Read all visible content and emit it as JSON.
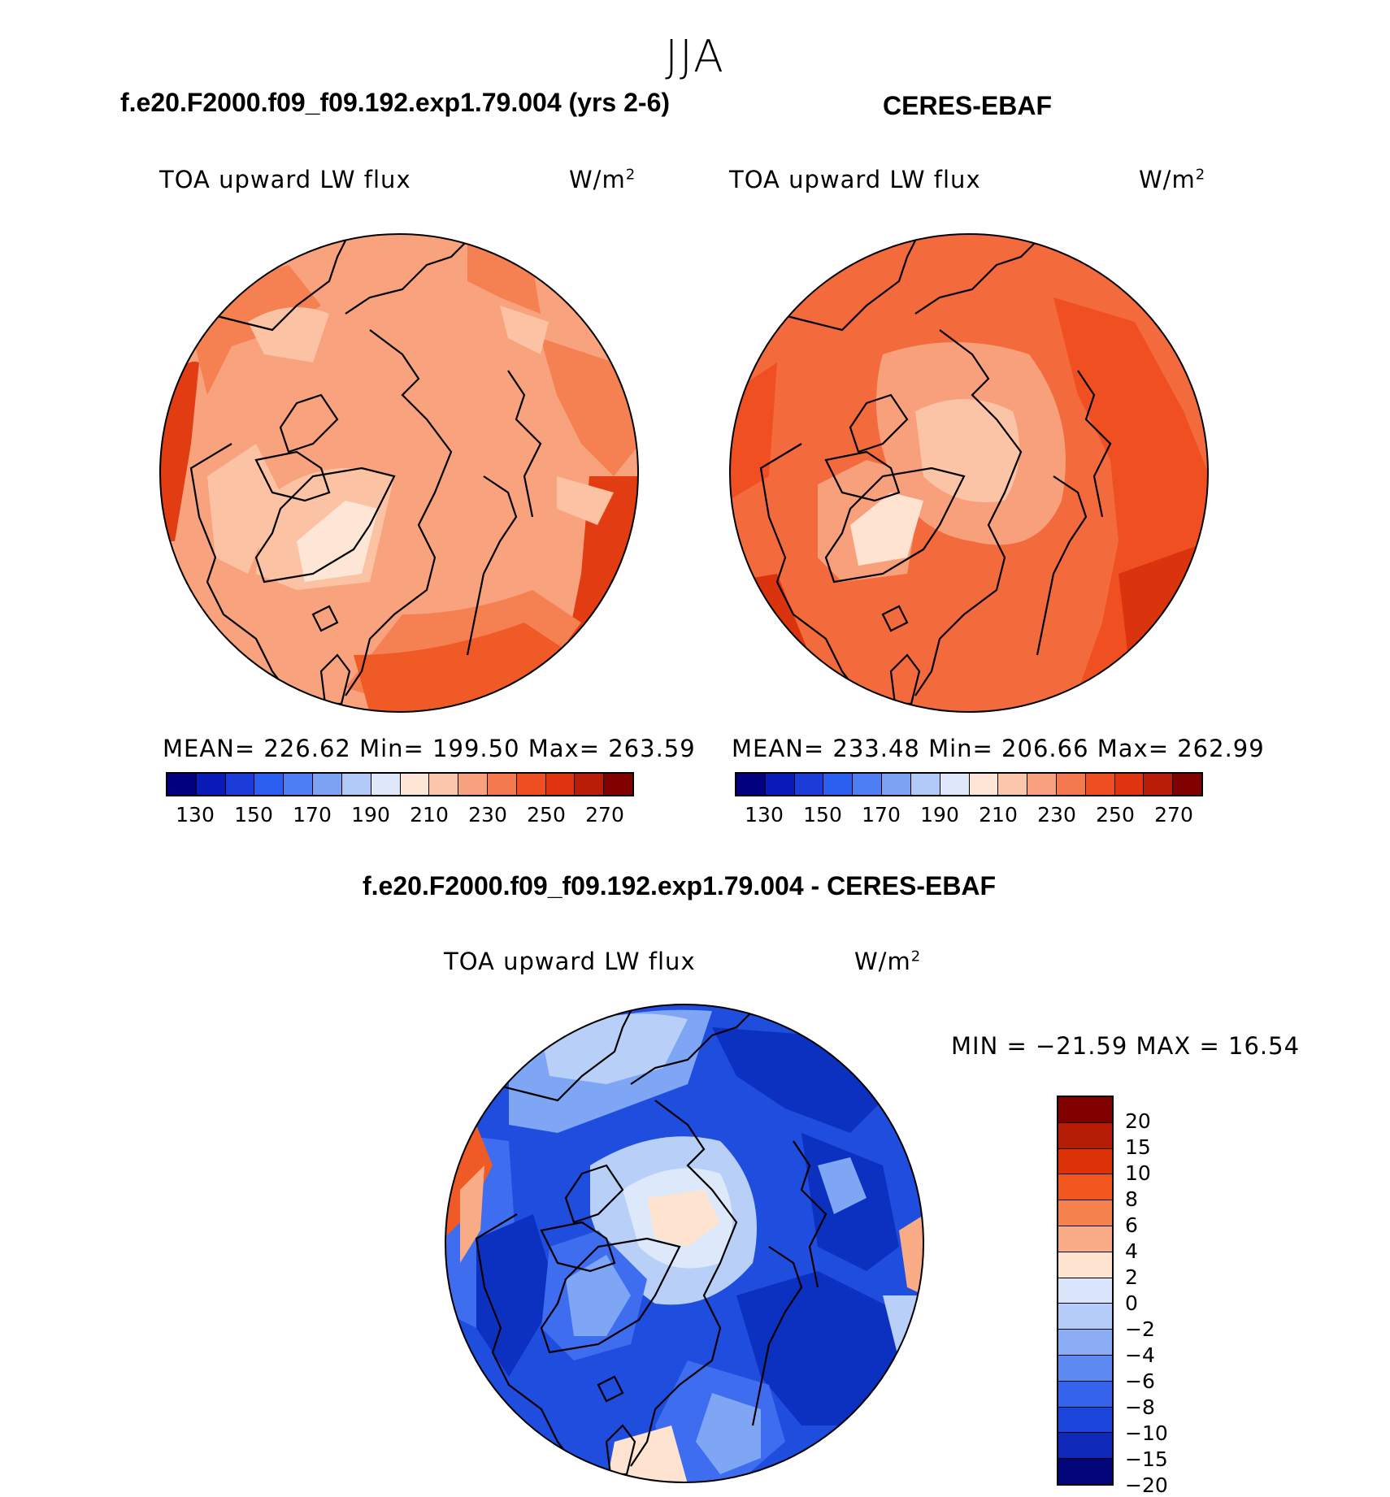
{
  "season": "JJA",
  "panels": [
    {
      "case": "f.e20.F2000.f09_f09.192.exp1.79.004 (yrs 2-6)",
      "variable": "TOA upward LW flux",
      "units": "W/m",
      "units_sup": "2",
      "stats": "MEAN= 226.62   Min= 199.50   Max= 263.59"
    },
    {
      "case": "CERES-EBAF",
      "variable": "TOA upward LW flux",
      "units": "W/m",
      "units_sup": "2",
      "stats": "MEAN= 233.48   Min= 206.66   Max= 262.99"
    },
    {
      "case": "f.e20.F2000.f09_f09.192.exp1.79.004 - CERES-EBAF",
      "variable": "TOA upward LW flux",
      "units": "W/m",
      "units_sup": "2",
      "stats": "MIN =  −21.59 MAX =   16.54"
    }
  ],
  "colorbar_main": {
    "ticks": [
      "130",
      "150",
      "170",
      "190",
      "210",
      "230",
      "250",
      "270"
    ],
    "colors": [
      "#02007e",
      "#0a1ab8",
      "#1b3cd9",
      "#2b5ff0",
      "#4d7ef4",
      "#7ca3f3",
      "#b1c9f6",
      "#dfe8fb",
      "#fde6d5",
      "#fac7ad",
      "#f7a17f",
      "#f4794f",
      "#ef4e22",
      "#de3410",
      "#b91c07",
      "#800000"
    ]
  },
  "colorbar_diff": {
    "labels": [
      "20",
      "15",
      "10",
      "8",
      "6",
      "4",
      "2",
      "0",
      "−2",
      "−4",
      "−6",
      "−8",
      "−10",
      "−15",
      "−20"
    ],
    "colors": [
      "#800000",
      "#b51c05",
      "#dc3208",
      "#f2561f",
      "#f5814f",
      "#f9ab85",
      "#fde3d0",
      "#d9e6fb",
      "#b4ccf7",
      "#8aadf5",
      "#5d8af2",
      "#3563ec",
      "#1c45db",
      "#0f2ab8",
      "#03067a"
    ]
  },
  "map_palette": {
    "model": {
      "base": "#f8a27e",
      "warm": "#f58052",
      "warmer": "#ef5a27",
      "hot": "#e23c12",
      "cool": "#fbc3a4",
      "cooler": "#fde6d6",
      "land": "#fcd9c2"
    },
    "obs": {
      "base": "#f36a3c",
      "warm": "#ef4f21",
      "hot": "#d9340e",
      "cool": "#f8a07c",
      "cooler": "#fbc4a6",
      "coolest": "#fde3d0"
    },
    "diff": {
      "base": "#1f4ddd",
      "deep": "#0c30c0",
      "mid": "#3e6df0",
      "light": "#7fa6f5",
      "lighter": "#b8cff8",
      "pale": "#dde8fb",
      "pos": "#fde3d0",
      "pos2": "#f9ab85",
      "pos3": "#ef5a27"
    }
  }
}
